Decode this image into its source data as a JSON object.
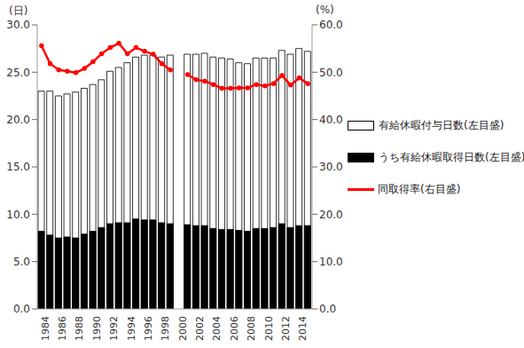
{
  "chart_data": {
    "type": "bar",
    "ylabel": "(日)",
    "y2label": "(%)",
    "categories": [
      "1984",
      null,
      "1986",
      null,
      "1988",
      null,
      "1990",
      null,
      "1992",
      null,
      "1994",
      null,
      "1996",
      null,
      "1998",
      null,
      "2000",
      null,
      "2002",
      null,
      "2004",
      null,
      "2006",
      null,
      "2008",
      null,
      "2010",
      null,
      "2012",
      null,
      "2014",
      null
    ],
    "series": [
      {
        "name": "有給休暇付与日数(左目盛)",
        "type": "bar",
        "color": "#ffffff",
        "values": [
          23.0,
          23.0,
          22.5,
          22.7,
          22.9,
          23.3,
          23.7,
          24.2,
          25.1,
          25.5,
          26.0,
          26.6,
          26.8,
          26.8,
          26.6,
          26.8,
          null,
          26.9,
          26.9,
          27.0,
          26.6,
          26.5,
          26.4,
          26.0,
          25.9,
          26.5,
          26.5,
          26.5,
          27.3,
          26.9,
          27.5,
          27.2
        ]
      },
      {
        "name": "うち有給休暇取得日数(左目盛)",
        "type": "bar",
        "color": "#000000",
        "values": [
          8.2,
          7.8,
          7.5,
          7.6,
          7.5,
          7.9,
          8.2,
          8.6,
          9.0,
          9.1,
          9.1,
          9.5,
          9.4,
          9.4,
          9.1,
          9.0,
          null,
          8.9,
          8.8,
          8.8,
          8.5,
          8.4,
          8.4,
          8.3,
          8.2,
          8.5,
          8.5,
          8.6,
          9.0,
          8.6,
          8.8,
          8.8
        ]
      },
      {
        "name": "同取得率(右目盛)",
        "type": "line",
        "color": "#ff0000",
        "axis": "y2",
        "marker": "circle",
        "values": [
          55.6,
          51.8,
          50.5,
          50.2,
          49.9,
          50.8,
          52.2,
          53.9,
          55.2,
          56.1,
          53.9,
          55.2,
          54.4,
          53.8,
          51.8,
          50.5,
          null,
          49.5,
          48.4,
          48.1,
          47.4,
          46.6,
          46.6,
          46.7,
          46.7,
          47.4,
          47.1,
          47.6,
          49.3,
          47.3,
          48.8,
          47.6
        ]
      }
    ],
    "ylim": [
      0,
      30
    ],
    "yticks": [
      {
        "value": 0,
        "label": "0.0"
      },
      {
        "value": 5,
        "label": "5.0"
      },
      {
        "value": 10,
        "label": "10.0"
      },
      {
        "value": 15,
        "label": "15.0"
      },
      {
        "value": 20,
        "label": "20.0"
      },
      {
        "value": 25,
        "label": "25.0"
      },
      {
        "value": 30,
        "label": "30.0"
      }
    ],
    "y2lim": [
      0,
      60
    ],
    "y2ticks": [
      {
        "value": 0,
        "label": "0.0"
      },
      {
        "value": 10,
        "label": "10.0"
      },
      {
        "value": 20,
        "label": "20.0"
      },
      {
        "value": 30,
        "label": "30.0"
      },
      {
        "value": 40,
        "label": "40.0"
      },
      {
        "value": 50,
        "label": "50.0"
      },
      {
        "value": 60,
        "label": "60.0"
      }
    ],
    "grid": false,
    "legend": "right"
  }
}
